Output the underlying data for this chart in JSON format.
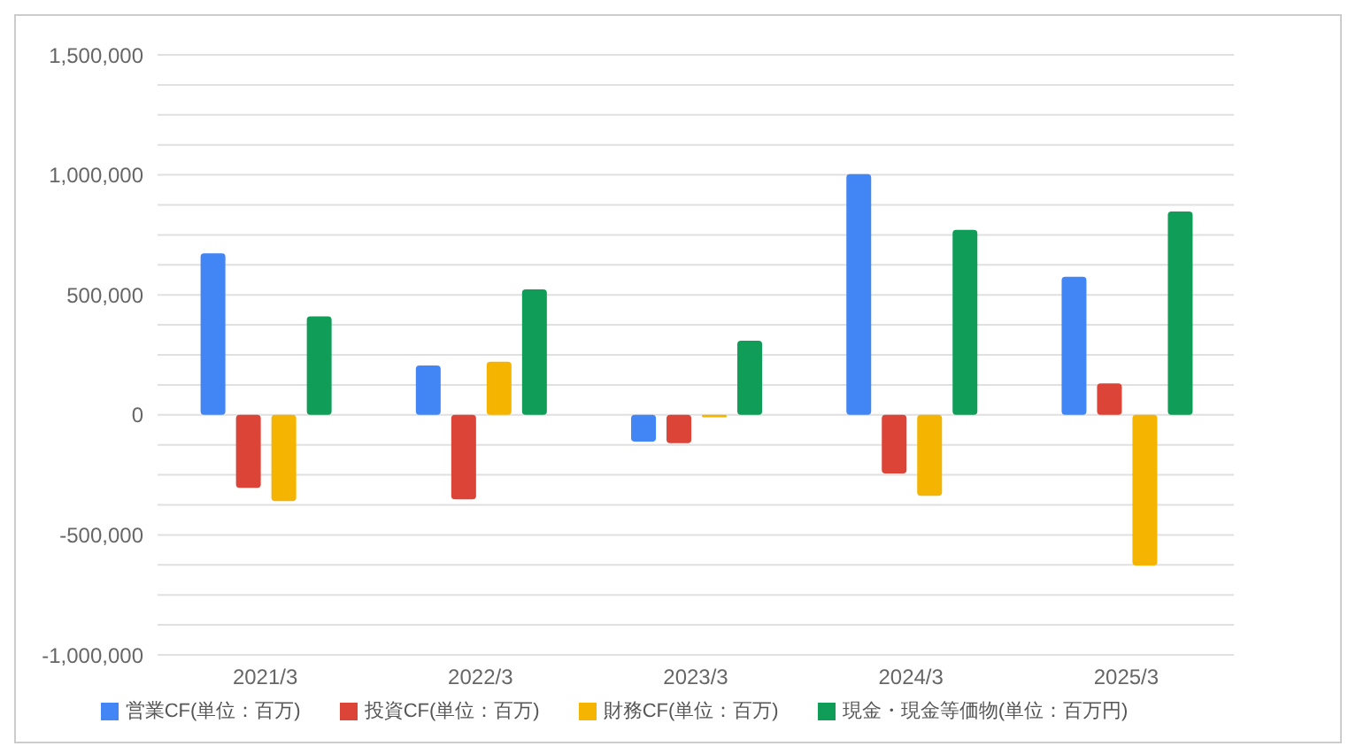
{
  "chart_data": {
    "type": "bar",
    "categories": [
      "2021/3",
      "2022/3",
      "2023/3",
      "2024/3",
      "2025/3"
    ],
    "series": [
      {
        "name": "営業CF(単位：百万)",
        "color": "#4285f4",
        "values": [
          673000,
          206000,
          -111000,
          1003000,
          575000
        ]
      },
      {
        "name": "投資CF(単位：百万)",
        "color": "#db4437",
        "values": [
          -304000,
          -352000,
          -118000,
          -244000,
          131000
        ]
      },
      {
        "name": "財務CF(単位：百万)",
        "color": "#f4b400",
        "values": [
          -359000,
          221000,
          -10000,
          -337000,
          -628000
        ]
      },
      {
        "name": "現金・現金等価物(単位：百万円)",
        "color": "#0f9d58",
        "values": [
          410000,
          523000,
          309000,
          771000,
          847000
        ]
      }
    ],
    "ylim": [
      -1000000,
      1500000
    ],
    "yticks": [
      {
        "value": -1000000,
        "label": "-1,000,000"
      },
      {
        "value": -875000,
        "label": null
      },
      {
        "value": -750000,
        "label": null
      },
      {
        "value": -625000,
        "label": null
      },
      {
        "value": -500000,
        "label": "-500,000"
      },
      {
        "value": -375000,
        "label": null
      },
      {
        "value": -250000,
        "label": null
      },
      {
        "value": -125000,
        "label": null
      },
      0,
      {
        "value": 125000,
        "label": null
      },
      {
        "value": 250000,
        "label": null
      },
      {
        "value": 375000,
        "label": null
      },
      {
        "value": 500000,
        "label": "500,000"
      },
      {
        "value": 625000,
        "label": null
      },
      {
        "value": 750000,
        "label": null
      },
      {
        "value": 875000,
        "label": null
      },
      {
        "value": 1000000,
        "label": "1,000,000"
      },
      {
        "value": 1125000,
        "label": null
      },
      {
        "value": 1250000,
        "label": null
      },
      {
        "value": 1375000,
        "label": null
      },
      {
        "value": 1500000,
        "label": "1,500,000"
      }
    ],
    "grid": "y",
    "legend": "bottom"
  }
}
